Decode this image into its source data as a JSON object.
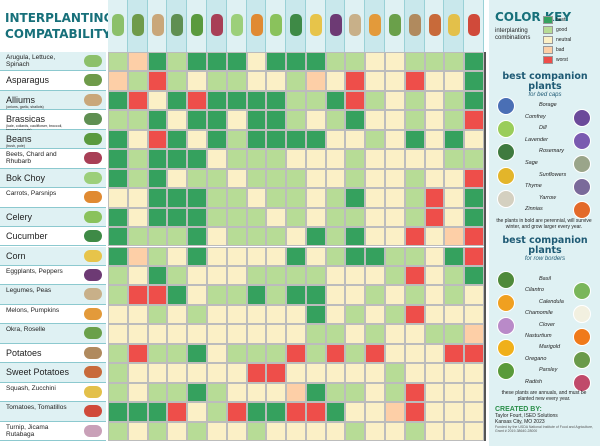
{
  "title": {
    "line1": "INTERPLANTING",
    "line2": "COMPATABILITY"
  },
  "columns": [
    {
      "name": "Arugula, Lettuce, Spinach",
      "color": "#8cc06a"
    },
    {
      "name": "Asparagus",
      "color": "#6f9b4a"
    },
    {
      "name": "Alliums",
      "color": "#c9a77a"
    },
    {
      "name": "Brassicas",
      "color": "#5f8f52"
    },
    {
      "name": "Beans",
      "color": "#5a9a3e"
    },
    {
      "name": "Beets, Chard and Rhubarb",
      "color": "#a83f56"
    },
    {
      "name": "Bok Choy",
      "color": "#9ccf7a"
    },
    {
      "name": "Carrots, Parsnips",
      "color": "#e08a32"
    },
    {
      "name": "Celery",
      "color": "#8ac25c"
    },
    {
      "name": "Cucumber",
      "color": "#3e8a46"
    },
    {
      "name": "Corn",
      "color": "#e7c44a"
    },
    {
      "name": "Eggplants, Peppers",
      "color": "#6d3a74"
    },
    {
      "name": "Legumes, Peas",
      "color": "#c8b089"
    },
    {
      "name": "Melons, Pumpkins",
      "color": "#e39a3a"
    },
    {
      "name": "Okra, Roselle",
      "color": "#6aa04a"
    },
    {
      "name": "Potatoes",
      "color": "#b08a5e"
    },
    {
      "name": "Sweet Potatoes",
      "color": "#c86a3a"
    },
    {
      "name": "Squash, Zucchini",
      "color": "#e3c04a"
    },
    {
      "name": "Tomatoes, Tomatillos",
      "color": "#d04a3a"
    }
  ],
  "rows": [
    {
      "label": "Arugula, Lettuce, Spinach",
      "sub": "",
      "big": false,
      "img": "#8cc06a",
      "cells": [
        "good",
        "bad",
        "best",
        "good",
        "best",
        "best",
        "best",
        "neutral",
        "best",
        "best",
        "best",
        "good",
        "good",
        "neutral",
        "neutral",
        "good",
        "good",
        "good",
        "best"
      ]
    },
    {
      "label": "Asparagus",
      "sub": "",
      "big": true,
      "img": "#6f9b4a",
      "cells": [
        "bad",
        "good",
        "worst",
        "good",
        "neutral",
        "good",
        "good",
        "neutral",
        "neutral",
        "good",
        "bad",
        "neutral",
        "worst",
        "neutral",
        "neutral",
        "worst",
        "neutral",
        "neutral",
        "best"
      ]
    },
    {
      "label": "Alliums",
      "sub": "(onions, garlic, shallots)",
      "big": true,
      "img": "#c9a77a",
      "cells": [
        "best",
        "worst",
        "neutral",
        "best",
        "worst",
        "best",
        "best",
        "best",
        "best",
        "good",
        "good",
        "best",
        "worst",
        "good",
        "neutral",
        "good",
        "neutral",
        "good",
        "best"
      ]
    },
    {
      "label": "Brassicas",
      "sub": "(kale, collards, cauliflower, broccoli, brussel sprouts)",
      "big": true,
      "img": "#5f8f52",
      "cells": [
        "good",
        "good",
        "best",
        "neutral",
        "best",
        "best",
        "neutral",
        "best",
        "best",
        "good",
        "neutral",
        "good",
        "best",
        "neutral",
        "neutral",
        "good",
        "neutral",
        "good",
        "worst"
      ]
    },
    {
      "label": "Beans",
      "sub": "(bush, pole)",
      "big": true,
      "img": "#5a9a3e",
      "cells": [
        "best",
        "neutral",
        "worst",
        "best",
        "neutral",
        "best",
        "good",
        "best",
        "best",
        "best",
        "best",
        "neutral",
        "neutral",
        "good",
        "neutral",
        "best",
        "neutral",
        "best",
        "neutral"
      ]
    },
    {
      "label": "Beets, Chard and Rhubarb",
      "sub": "",
      "big": false,
      "img": "#a83f56",
      "cells": [
        "best",
        "good",
        "best",
        "best",
        "best",
        "neutral",
        "good",
        "good",
        "good",
        "neutral",
        "neutral",
        "neutral",
        "good",
        "neutral",
        "neutral",
        "neutral",
        "neutral",
        "good",
        "good"
      ]
    },
    {
      "label": "Bok Choy",
      "sub": "",
      "big": true,
      "img": "#9ccf7a",
      "cells": [
        "best",
        "good",
        "best",
        "neutral",
        "good",
        "good",
        "neutral",
        "good",
        "good",
        "good",
        "neutral",
        "neutral",
        "good",
        "neutral",
        "neutral",
        "good",
        "neutral",
        "neutral",
        "worst"
      ]
    },
    {
      "label": "Carrots, Parsnips",
      "sub": "",
      "big": false,
      "img": "#e08a32",
      "cells": [
        "neutral",
        "neutral",
        "best",
        "best",
        "best",
        "good",
        "good",
        "neutral",
        "good",
        "good",
        "neutral",
        "good",
        "best",
        "neutral",
        "neutral",
        "good",
        "worst",
        "neutral",
        "best"
      ]
    },
    {
      "label": "Celery",
      "sub": "",
      "big": true,
      "img": "#8ac25c",
      "cells": [
        "best",
        "neutral",
        "best",
        "best",
        "best",
        "good",
        "good",
        "good",
        "neutral",
        "good",
        "neutral",
        "good",
        "good",
        "neutral",
        "neutral",
        "good",
        "worst",
        "neutral",
        "best"
      ]
    },
    {
      "label": "Cucumber",
      "sub": "",
      "big": true,
      "img": "#3e8a46",
      "cells": [
        "best",
        "good",
        "good",
        "good",
        "best",
        "neutral",
        "good",
        "good",
        "good",
        "neutral",
        "best",
        "good",
        "best",
        "neutral",
        "neutral",
        "worst",
        "neutral",
        "bad",
        "worst"
      ]
    },
    {
      "label": "Corn",
      "sub": "",
      "big": true,
      "img": "#e7c44a",
      "cells": [
        "best",
        "bad",
        "good",
        "neutral",
        "best",
        "neutral",
        "neutral",
        "neutral",
        "neutral",
        "best",
        "neutral",
        "good",
        "best",
        "best",
        "good",
        "good",
        "neutral",
        "best",
        "worst"
      ]
    },
    {
      "label": "Eggplants, Peppers",
      "sub": "",
      "big": false,
      "img": "#6d3a74",
      "cells": [
        "good",
        "neutral",
        "best",
        "good",
        "neutral",
        "neutral",
        "neutral",
        "good",
        "good",
        "good",
        "good",
        "neutral",
        "neutral",
        "neutral",
        "good",
        "worst",
        "neutral",
        "good",
        "best"
      ]
    },
    {
      "label": "Legumes, Peas",
      "sub": "",
      "big": false,
      "img": "#c8b089",
      "cells": [
        "good",
        "worst",
        "worst",
        "best",
        "neutral",
        "good",
        "good",
        "best",
        "good",
        "best",
        "best",
        "neutral",
        "neutral",
        "good",
        "neutral",
        "good",
        "neutral",
        "good",
        "neutral"
      ]
    },
    {
      "label": "Melons, Pumpkins",
      "sub": "",
      "big": false,
      "img": "#e39a3a",
      "cells": [
        "neutral",
        "neutral",
        "good",
        "neutral",
        "good",
        "neutral",
        "neutral",
        "neutral",
        "neutral",
        "neutral",
        "best",
        "neutral",
        "good",
        "neutral",
        "good",
        "worst",
        "neutral",
        "neutral",
        "neutral"
      ]
    },
    {
      "label": "Okra, Roselle",
      "sub": "",
      "big": false,
      "img": "#6aa04a",
      "cells": [
        "neutral",
        "neutral",
        "neutral",
        "neutral",
        "neutral",
        "neutral",
        "neutral",
        "neutral",
        "neutral",
        "neutral",
        "good",
        "good",
        "neutral",
        "good",
        "neutral",
        "neutral",
        "good",
        "good",
        "bad"
      ]
    },
    {
      "label": "Potatoes",
      "sub": "",
      "big": true,
      "img": "#b08a5e",
      "cells": [
        "good",
        "worst",
        "good",
        "good",
        "best",
        "neutral",
        "good",
        "good",
        "good",
        "worst",
        "good",
        "worst",
        "good",
        "worst",
        "neutral",
        "neutral",
        "neutral",
        "worst",
        "worst"
      ]
    },
    {
      "label": "Sweet Potatoes",
      "sub": "",
      "big": true,
      "img": "#c86a3a",
      "cells": [
        "good",
        "neutral",
        "neutral",
        "neutral",
        "neutral",
        "neutral",
        "neutral",
        "worst",
        "worst",
        "neutral",
        "neutral",
        "neutral",
        "neutral",
        "neutral",
        "good",
        "neutral",
        "neutral",
        "neutral",
        "neutral"
      ]
    },
    {
      "label": "Squash, Zucchini",
      "sub": "",
      "big": false,
      "img": "#e3c04a",
      "cells": [
        "good",
        "neutral",
        "good",
        "good",
        "best",
        "good",
        "neutral",
        "neutral",
        "neutral",
        "bad",
        "best",
        "good",
        "good",
        "neutral",
        "good",
        "worst",
        "neutral",
        "neutral",
        "neutral"
      ]
    },
    {
      "label": "Tomatoes, Tomatillos",
      "sub": "",
      "big": false,
      "img": "#d04a3a",
      "cells": [
        "best",
        "best",
        "best",
        "worst",
        "neutral",
        "good",
        "worst",
        "best",
        "best",
        "worst",
        "worst",
        "best",
        "neutral",
        "neutral",
        "bad",
        "worst",
        "neutral",
        "neutral",
        "neutral"
      ]
    },
    {
      "label": "Turnip, Jicama Rutabaga",
      "sub": "",
      "big": false,
      "img": "#c9a0b8",
      "cells": [
        "good",
        "neutral",
        "good",
        "neutral",
        "good",
        "neutral",
        "neutral",
        "good",
        "neutral",
        "neutral",
        "neutral",
        "neutral",
        "good",
        "neutral",
        "neutral",
        "good",
        "neutral",
        "neutral",
        "neutral"
      ]
    }
  ],
  "key": {
    "title": "COLOR KEY",
    "subtitle": "interplanting combinations",
    "items": [
      {
        "label": "best",
        "color": "#35a15e"
      },
      {
        "label": "good",
        "color": "#b7dc96"
      },
      {
        "label": "neutral",
        "color": "#fbf0c6"
      },
      {
        "label": "bad",
        "color": "#fdcfa7"
      },
      {
        "label": "worst",
        "color": "#ee4e4a"
      }
    ]
  },
  "beds": {
    "title": "best companion plants",
    "subtitle": "for bed caps",
    "plants": [
      "Borage",
      "Comfrey",
      "Dill",
      "Lavender",
      "Rosemary",
      "Sage",
      "Sunflowers",
      "Thyme",
      "Yarrow",
      "Zinnias"
    ],
    "note": "the plants in bold are perennial, will survive winter, and grow larger every year."
  },
  "borders": {
    "title": "best companion plants",
    "subtitle": "for row borders",
    "plants": [
      "Basil",
      "Cilantro",
      "Calendula",
      "Chamomile",
      "Clover",
      "Nasturtium",
      "Marigold",
      "Oregano",
      "Parsley",
      "Radish"
    ],
    "note": "these plants are annuals, and must be planted new every year."
  },
  "credit": {
    "title": "CREATED BY:",
    "line1": "Taylor Fourt, ISED Solutions",
    "line2": "Kansas City, MO 2023",
    "fund": "Funded by the USDA National Institute of Food and Agriculture, Grant # 2019-38640-28000"
  }
}
